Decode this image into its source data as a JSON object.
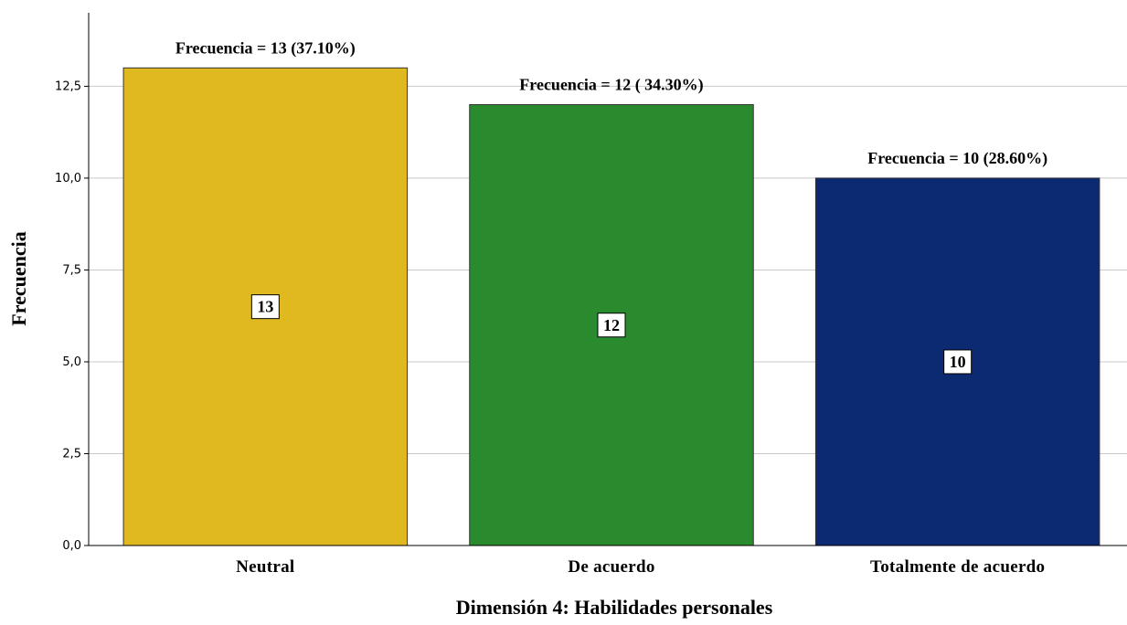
{
  "chart_data": {
    "type": "bar",
    "xlabel": "Dimensión 4: Habilidades personales",
    "ylabel": "Frecuencia",
    "ylim": [
      0,
      14.5
    ],
    "yticks": [
      "0,0",
      "2,5",
      "5,0",
      "7,5",
      "10,0",
      "12,5"
    ],
    "ytick_values": [
      0,
      2.5,
      5,
      7.5,
      10,
      12.5
    ],
    "grid": true,
    "categories": [
      "Neutral",
      "De acuerdo",
      "Totalmente de acuerdo"
    ],
    "values": [
      13,
      12,
      10
    ],
    "colors": [
      "#e0b81f",
      "#2a8a2e",
      "#0c2a72"
    ],
    "top_labels": [
      "Frecuencia = 13 (37.10%)",
      "Frecuencia = 12 ( 34.30%)",
      "Frecuencia = 10 (28.60%)"
    ],
    "inner_labels": [
      "13",
      "12",
      "10"
    ]
  }
}
